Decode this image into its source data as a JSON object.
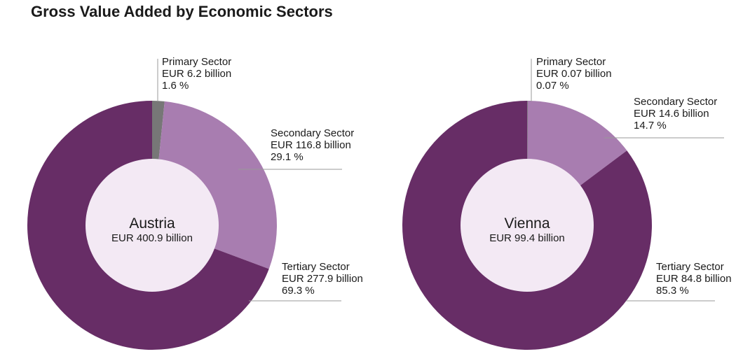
{
  "page_title": "Gross Value Added by Economic Sectors",
  "colors": {
    "primary": "#777777",
    "secondary": "#a87db0",
    "tertiary": "#672d66",
    "center": "#f3e9f4",
    "leader": "#999999"
  },
  "chart_data": [
    {
      "type": "pie",
      "center_label": "Austria",
      "center_value": "EUR 400.9 billion",
      "slices": [
        {
          "name": "Primary Sector",
          "value_text": "EUR 6.2 billion",
          "percent_text": "1.6 %",
          "percent": 1.6,
          "value": 6.2
        },
        {
          "name": "Secondary Sector",
          "value_text": "EUR 116.8 billion",
          "percent_text": "29.1 %",
          "percent": 29.1,
          "value": 116.8
        },
        {
          "name": "Tertiary Sector",
          "value_text": "EUR 277.9 billion",
          "percent_text": "69.3 %",
          "percent": 69.3,
          "value": 277.9
        }
      ]
    },
    {
      "type": "pie",
      "center_label": "Vienna",
      "center_value": "EUR 99.4 billion",
      "slices": [
        {
          "name": "Primary Sector",
          "value_text": "EUR 0.07 billion",
          "percent_text": "0.07 %",
          "percent": 0.07,
          "value": 0.07
        },
        {
          "name": "Secondary Sector",
          "value_text": "EUR 14.6 billion",
          "percent_text": "14.7 %",
          "percent": 14.7,
          "value": 14.6
        },
        {
          "name": "Tertiary Sector",
          "value_text": "EUR 84.8 billion",
          "percent_text": "85.3 %",
          "percent": 85.3,
          "value": 84.8
        }
      ]
    }
  ]
}
